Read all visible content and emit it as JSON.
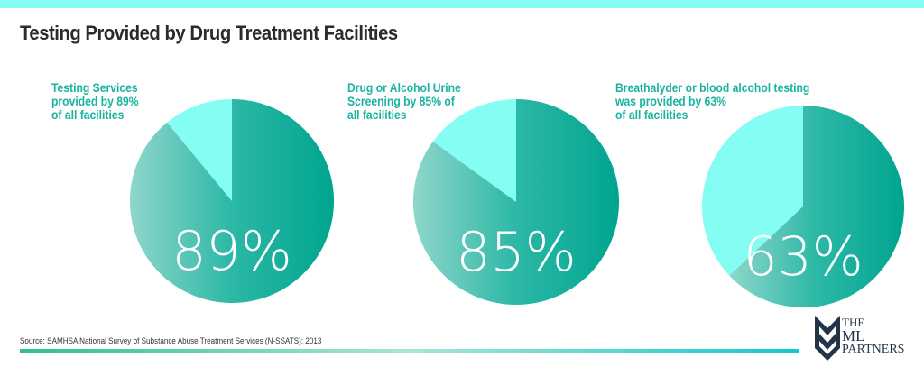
{
  "title": "Testing Provided by Drug Treatment Facilities",
  "chart_data": [
    {
      "type": "pie",
      "caption_lines": [
        "Testing Services",
        "provided by 89%",
        "of all facilities"
      ],
      "value": 89,
      "label": "89%"
    },
    {
      "type": "pie",
      "caption_lines": [
        "Drug or Alcohol Urine",
        "Screening by 85% of",
        "all facilities"
      ],
      "value": 85,
      "label": "85%"
    },
    {
      "type": "pie",
      "caption_lines": [
        "Breathalyder or blood alcohol testing",
        "was provided by 63%",
        "of all facilities"
      ],
      "value": 63,
      "label": "63%"
    }
  ],
  "source": "Source: SAMHSA National Survey of Substance Abuse Treatment Services (N-SSATS): 2013",
  "logo": {
    "line1": "THE",
    "line2": "ML",
    "line3": "PARTNERS"
  },
  "colors": {
    "dark": "#00a58f",
    "light_grad": "#8fd6cb",
    "remainder": "#84fdf3",
    "caption": "#1ab3a0"
  }
}
